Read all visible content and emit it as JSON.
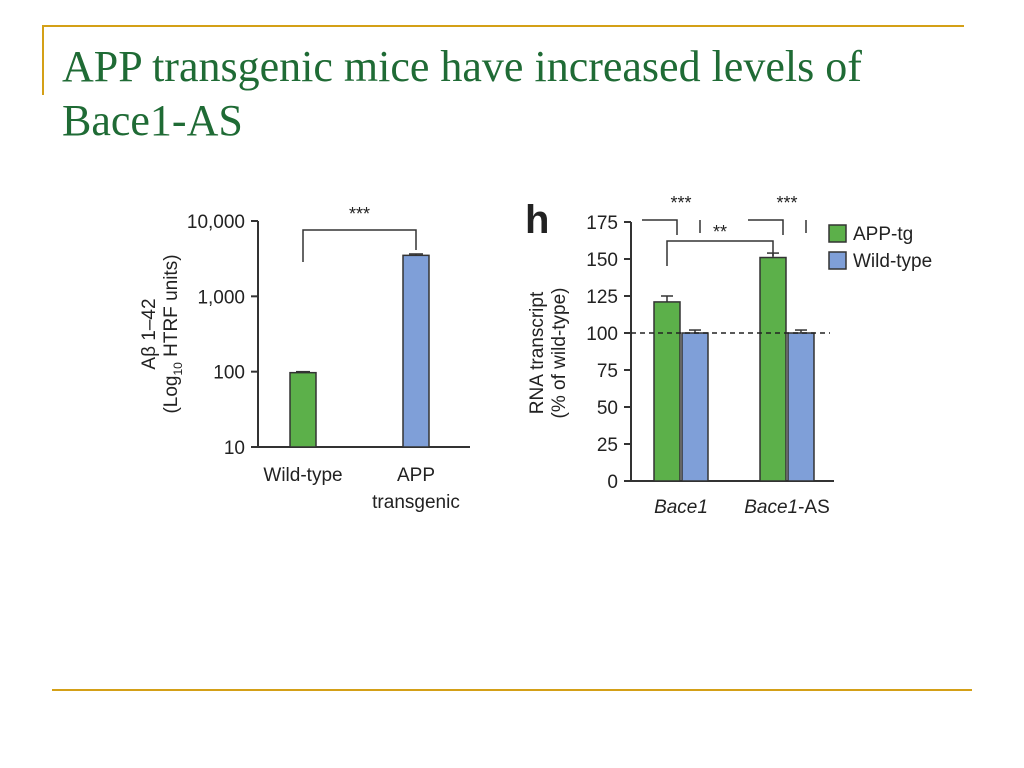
{
  "slide": {
    "title_line1": "APP transgenic mice have increased levels of",
    "title_line2": "Bace1-AS"
  },
  "colors": {
    "accent": "#d4a017",
    "title": "#1f6b35",
    "green": "#5cb04a",
    "blue": "#7f9fd8"
  },
  "chart_data": [
    {
      "type": "bar",
      "panel": "left",
      "ylabel_line1": "Aβ 1–42",
      "ylabel_line2_pre": "(Log",
      "ylabel_line2_sub": "10",
      "ylabel_line2_post": " HTRF units)",
      "yscale": "log",
      "ylim": [
        10,
        10000
      ],
      "yticks": [
        10,
        100,
        1000,
        10000
      ],
      "ytick_labels": [
        "10",
        "100",
        "1,000",
        "10,000"
      ],
      "categories": [
        "Wild-type",
        "APP transgenic"
      ],
      "category_labels": [
        [
          "Wild-type"
        ],
        [
          "APP",
          "transgenic"
        ]
      ],
      "values": [
        97,
        3500
      ],
      "errors": [
        3,
        150
      ],
      "colors": [
        "#5cb04a",
        "#7f9fd8"
      ],
      "significance": [
        {
          "from": 0,
          "to": 1,
          "label": "***"
        }
      ]
    },
    {
      "type": "bar",
      "panel": "right",
      "panel_label": "h",
      "ylabel_line1": "RNA transcript",
      "ylabel_line2": "(% of wild-type)",
      "ylim": [
        0,
        175
      ],
      "yticks": [
        0,
        25,
        50,
        75,
        100,
        125,
        150,
        175
      ],
      "ytick_labels": [
        "0",
        "25",
        "50",
        "75",
        "100",
        "125",
        "150",
        "175"
      ],
      "categories": [
        "Bace1",
        "Bace1-AS"
      ],
      "category_labels": [
        {
          "italic": "Bace1",
          "plain": ""
        },
        {
          "italic": "Bace1",
          "plain": "-AS"
        }
      ],
      "series": [
        {
          "name": "APP-tg",
          "color": "#5cb04a",
          "values": [
            121,
            151
          ],
          "errors": [
            4,
            3
          ]
        },
        {
          "name": "Wild-type",
          "color": "#7f9fd8",
          "values": [
            100,
            100
          ],
          "errors": [
            2,
            2
          ]
        }
      ],
      "reference_line": 100,
      "significance": [
        {
          "category": 0,
          "label": "***"
        },
        {
          "category": 1,
          "label": "***"
        },
        {
          "between_categories": [
            0,
            1
          ],
          "series": 0,
          "label": "**"
        }
      ]
    }
  ]
}
